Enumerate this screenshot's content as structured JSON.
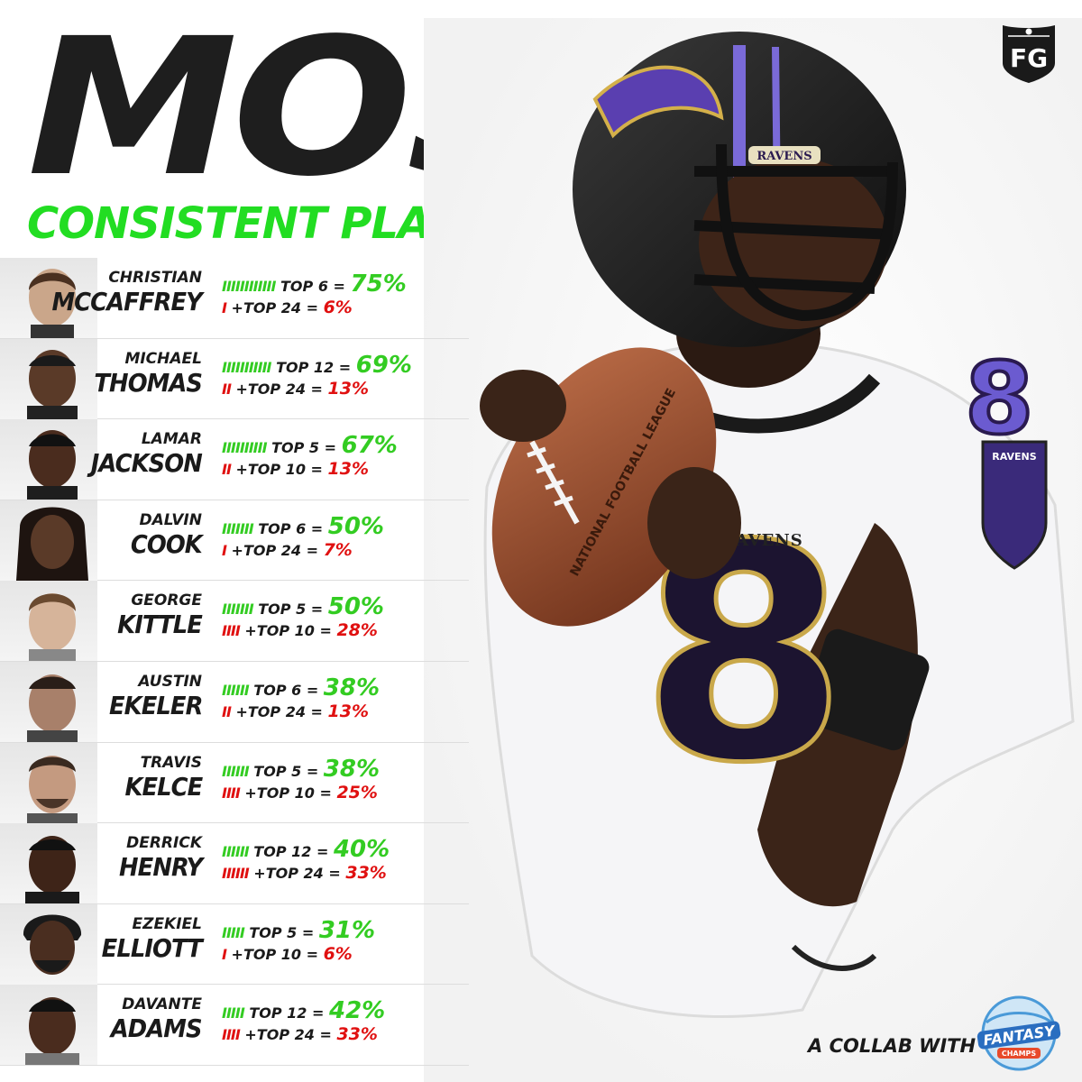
{
  "header": {
    "title": "MOST",
    "subtitle": "CONSISTENT PLAYERS"
  },
  "brand": {
    "logo_text": "FG",
    "logo_icon": "nfl-shield-icon"
  },
  "colors": {
    "green": "#33cc22",
    "red": "#e01010",
    "dark": "#1a1a1a",
    "purple": "#6b5bd0"
  },
  "players": [
    {
      "first": "CHRISTIAN",
      "last": "MCCAFFREY",
      "line1": {
        "bars": "IIIIIIIIIIII",
        "label": "TOP 6 =",
        "pct": "75%"
      },
      "line2": {
        "bars": "I",
        "label": "+TOP 24 =",
        "pct": "6%"
      }
    },
    {
      "first": "MICHAEL",
      "last": "THOMAS",
      "line1": {
        "bars": "IIIIIIIIIII",
        "label": "TOP 12 =",
        "pct": "69%"
      },
      "line2": {
        "bars": "II",
        "label": "+TOP 24 =",
        "pct": "13%"
      }
    },
    {
      "first": "LAMAR",
      "last": "JACKSON",
      "line1": {
        "bars": "IIIIIIIIII",
        "label": "TOP 5 =",
        "pct": "67%"
      },
      "line2": {
        "bars": "II",
        "label": "+TOP 10 =",
        "pct": "13%"
      }
    },
    {
      "first": "DALVIN",
      "last": "COOK",
      "line1": {
        "bars": "IIIIIII",
        "label": "TOP 6 =",
        "pct": "50%"
      },
      "line2": {
        "bars": "I",
        "label": "+TOP 24 =",
        "pct": "7%"
      }
    },
    {
      "first": "GEORGE",
      "last": "KITTLE",
      "line1": {
        "bars": "IIIIIII",
        "label": "TOP 5 =",
        "pct": "50%"
      },
      "line2": {
        "bars": "IIII",
        "label": "+TOP 10 =",
        "pct": "28%"
      }
    },
    {
      "first": "AUSTIN",
      "last": "EKELER",
      "line1": {
        "bars": "IIIIII",
        "label": "TOP 6 =",
        "pct": "38%"
      },
      "line2": {
        "bars": "II",
        "label": "+TOP 24 =",
        "pct": "13%"
      }
    },
    {
      "first": "TRAVIS",
      "last": "KELCE",
      "line1": {
        "bars": "IIIIII",
        "label": "TOP 5 =",
        "pct": "38%"
      },
      "line2": {
        "bars": "IIII",
        "label": "+TOP 10 =",
        "pct": "25%"
      }
    },
    {
      "first": "DERRICK",
      "last": "HENRY",
      "line1": {
        "bars": "IIIIII",
        "label": "TOP 12 =",
        "pct": "40%"
      },
      "line2": {
        "bars": "IIIIII",
        "label": "+TOP 24 =",
        "pct": "33%"
      }
    },
    {
      "first": "EZEKIEL",
      "last": "ELLIOTT",
      "line1": {
        "bars": "IIIII",
        "label": "TOP 5 =",
        "pct": "31%"
      },
      "line2": {
        "bars": "I",
        "label": "+TOP 10 =",
        "pct": "6%"
      }
    },
    {
      "first": "DAVANTE",
      "last": "ADAMS",
      "line1": {
        "bars": "IIIII",
        "label": "TOP 12 =",
        "pct": "42%"
      },
      "line2": {
        "bars": "IIII",
        "label": "+TOP 24 =",
        "pct": "33%"
      }
    }
  ],
  "hero": {
    "helmet_text": "RAVENS",
    "jersey_text": "RAVENS",
    "jersey_number": "8",
    "ball_text": "NATIONAL FOOTBALL LEAGUE",
    "patch_text": "RAVENS"
  },
  "footer": {
    "collab_text": "A COLLAB WITH",
    "partner_logo_text": "FANTASY",
    "partner_logo_subtext": "CHAMPS"
  }
}
